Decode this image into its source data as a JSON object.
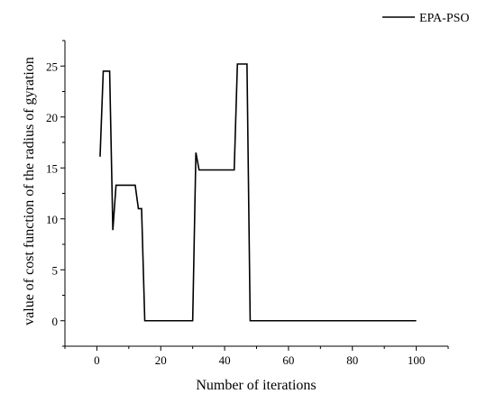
{
  "chart_data": {
    "type": "line",
    "title": "",
    "xlabel": "Number of iterations",
    "ylabel": "value of  cost function of the radius of gyration",
    "xlim": [
      -10,
      110
    ],
    "ylim": [
      -2.5,
      27.5
    ],
    "xticks": [
      0,
      20,
      40,
      60,
      80,
      100
    ],
    "yticks": [
      0,
      5,
      10,
      15,
      20,
      25
    ],
    "grid": false,
    "legend_position": "top-right",
    "series": [
      {
        "name": "EPA-PSO",
        "color": "#000000",
        "points": [
          [
            1,
            16.1
          ],
          [
            2,
            24.5
          ],
          [
            4,
            24.5
          ],
          [
            5,
            8.9
          ],
          [
            6,
            13.3
          ],
          [
            12,
            13.3
          ],
          [
            13,
            11.0
          ],
          [
            14,
            11.0
          ],
          [
            15,
            0
          ],
          [
            30,
            0
          ],
          [
            31,
            16.5
          ],
          [
            32,
            14.8
          ],
          [
            43,
            14.8
          ],
          [
            44,
            25.2
          ],
          [
            47,
            25.2
          ],
          [
            48,
            0
          ],
          [
            100,
            0
          ]
        ]
      }
    ]
  }
}
